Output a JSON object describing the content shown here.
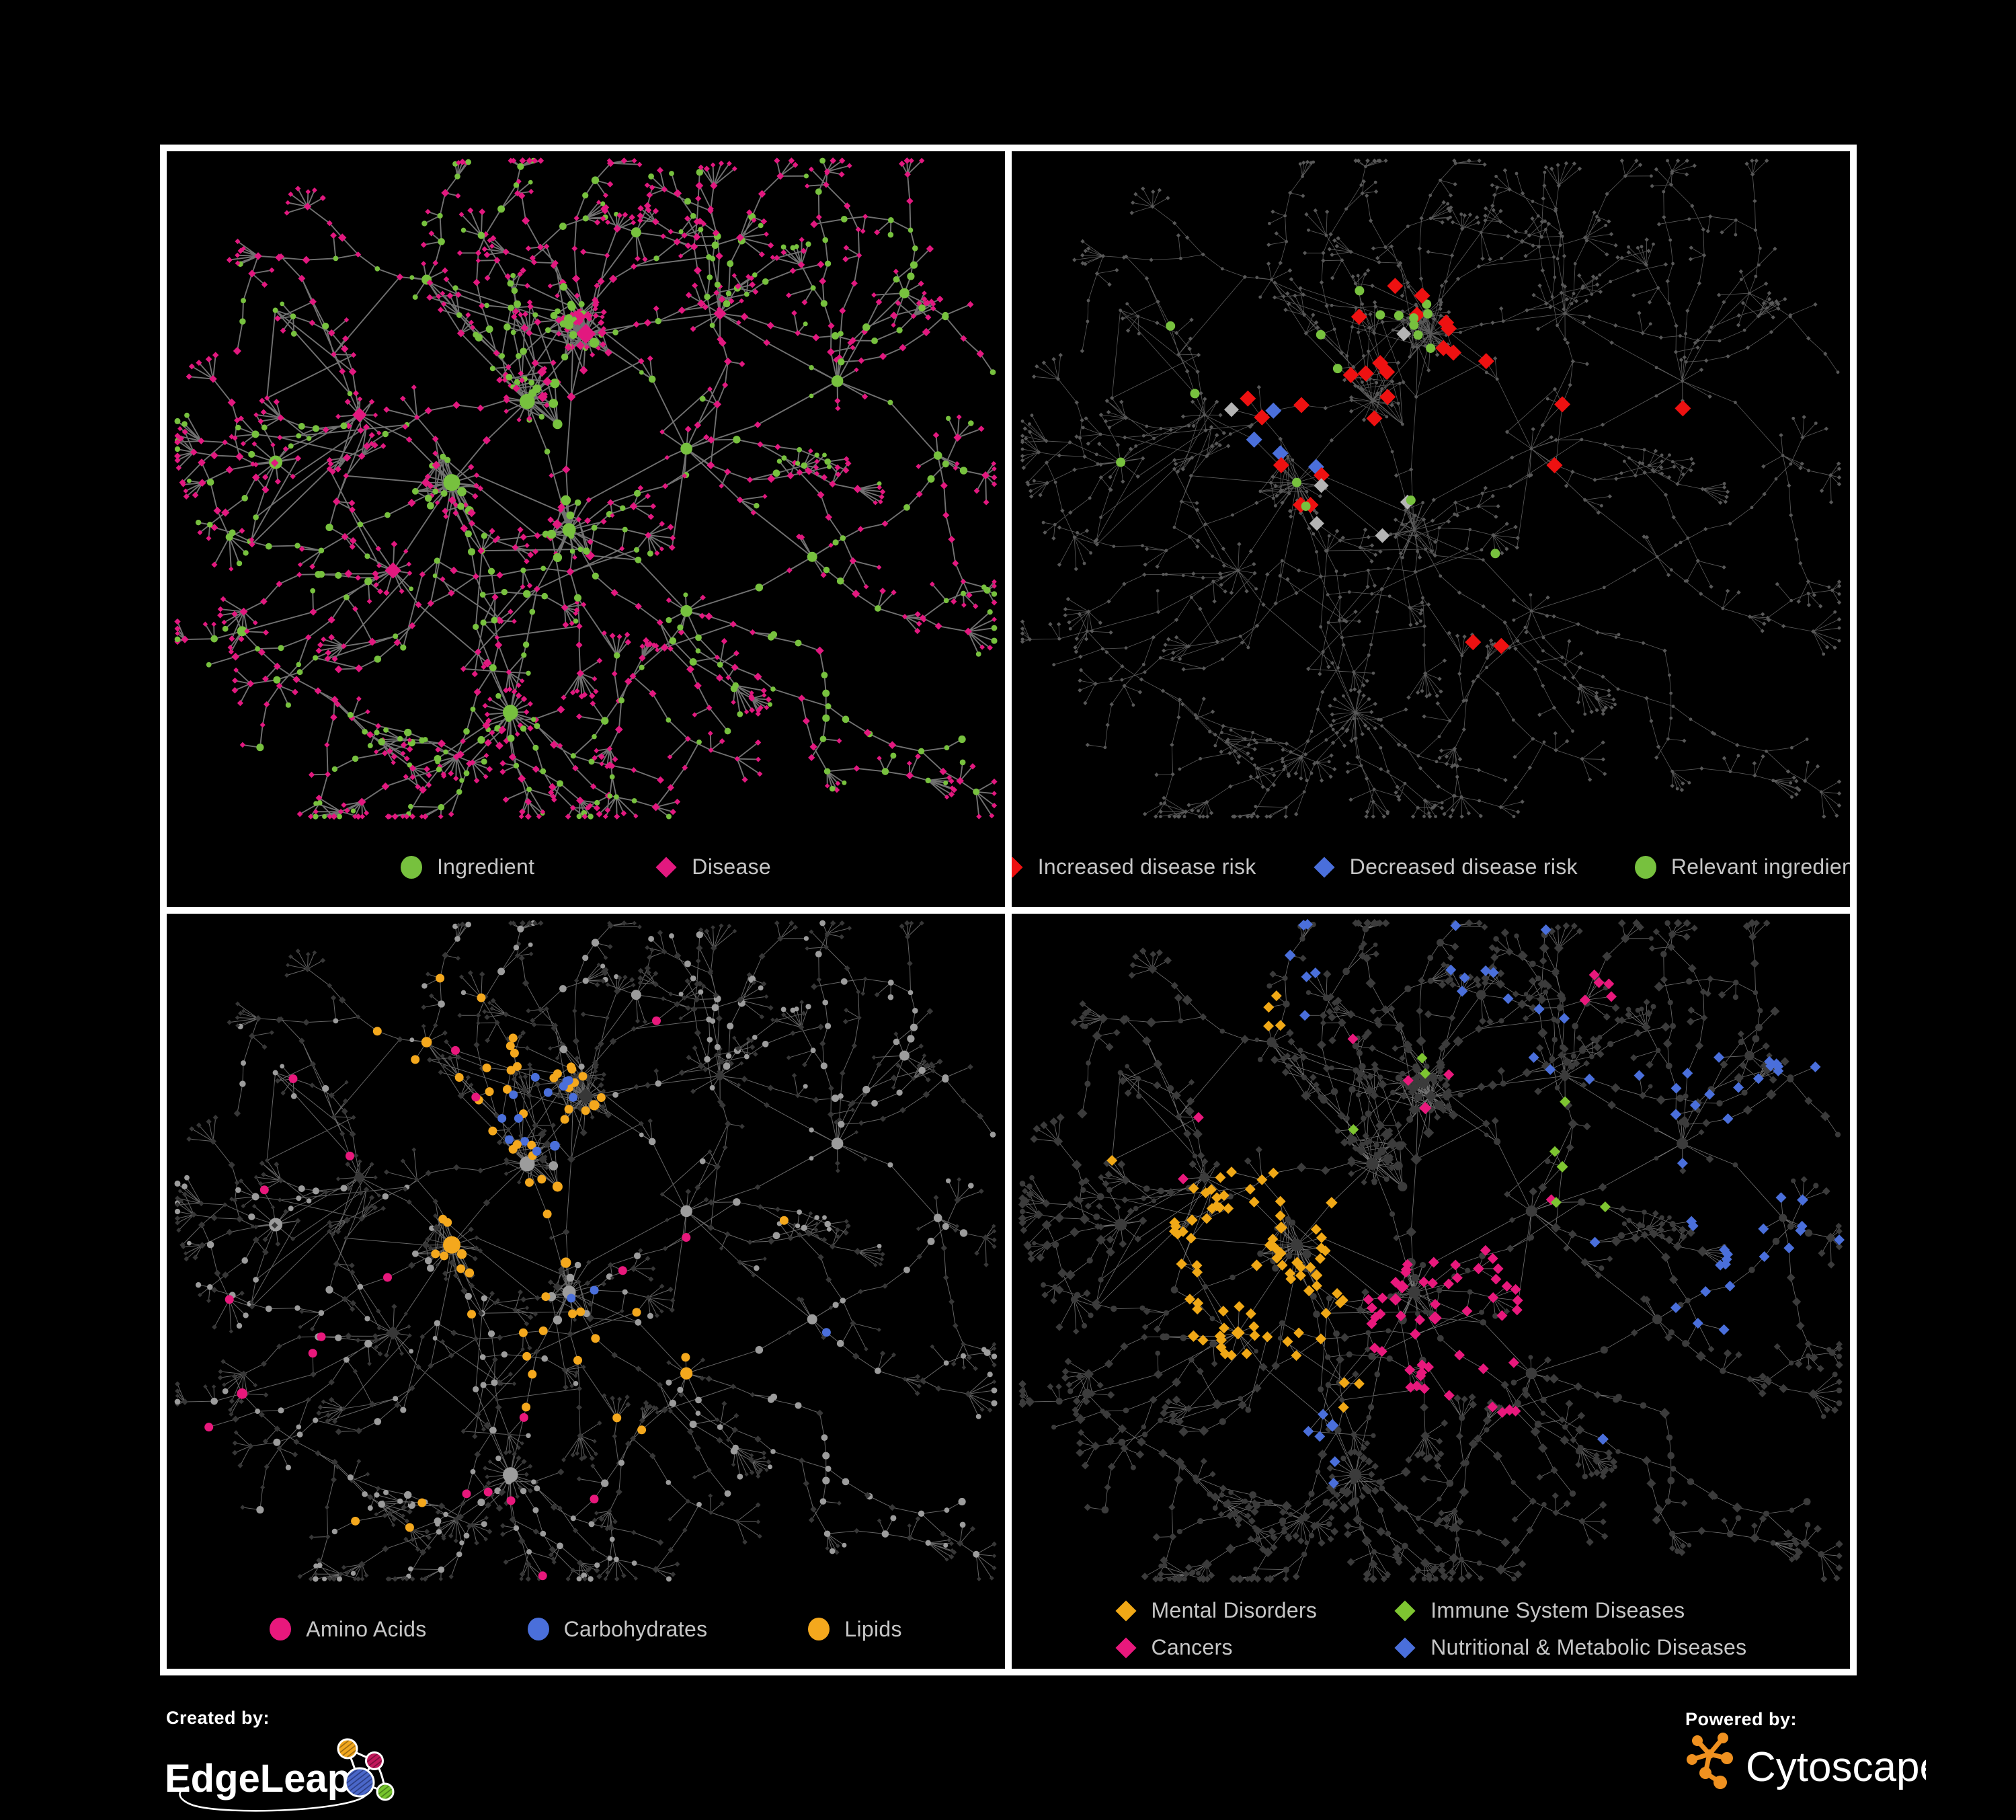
{
  "figure": {
    "background": "#000000",
    "panel_border": "#ffffff",
    "legend_text_color": "#c6c6c6"
  },
  "panels": [
    {
      "id": "ingredient-disease",
      "legend": [
        {
          "label": "Ingredient",
          "shape": "circle",
          "color": "#77c13e"
        },
        {
          "label": "Disease",
          "shape": "diamond",
          "color": "#e2187f"
        }
      ]
    },
    {
      "id": "disease-risk",
      "legend": [
        {
          "label": "Increased disease risk",
          "shape": "diamond",
          "color": "#ee1111"
        },
        {
          "label": "Decreased disease risk",
          "shape": "diamond",
          "color": "#4a6fdb"
        },
        {
          "label": "Relevant ingredient",
          "shape": "circle",
          "color": "#77c13e"
        }
      ]
    },
    {
      "id": "nutrient-classes",
      "legend": [
        {
          "label": "Amino Acids",
          "shape": "circle",
          "color": "#e8187c"
        },
        {
          "label": "Carbohydrates",
          "shape": "circle",
          "color": "#4a6fdb"
        },
        {
          "label": "Lipids",
          "shape": "circle",
          "color": "#f4a81d"
        }
      ]
    },
    {
      "id": "disease-classes",
      "legend": [
        {
          "label": "Mental Disorders",
          "shape": "diamond",
          "color": "#f0a816"
        },
        {
          "label": "Immune System Diseases",
          "shape": "diamond",
          "color": "#7ec531"
        },
        {
          "label": "Cancers",
          "shape": "diamond",
          "color": "#e8187c"
        },
        {
          "label": "Nutritional & Metabolic Diseases",
          "shape": "diamond",
          "color": "#4a6fdb"
        }
      ]
    }
  ],
  "network_style": {
    "ingredient_green": "#77c13e",
    "disease_pink": "#e2187f",
    "risk_red": "#ee1111",
    "benefit_blue": "#4a6fdb",
    "silver": "#b4b4b4",
    "amino_pink": "#e8187c",
    "carb_blue": "#4a6fdb",
    "lipid_orange": "#f4a81d",
    "mental_orange": "#f0a816",
    "immune_green": "#7ec531",
    "cancer_pink": "#e8187c",
    "metabolic_blue": "#4a6fdb",
    "neutral_gray": "#9c9c9c",
    "dark_node": "#3b3b3b",
    "dim_gray": "#585858"
  },
  "footer": {
    "created_by_label": "Created by:",
    "creator_name": "EdgeLeap",
    "powered_by_label": "Powered by:",
    "powered_by_name": "Cytoscape",
    "cytoscape_orange": "#ef9120"
  }
}
